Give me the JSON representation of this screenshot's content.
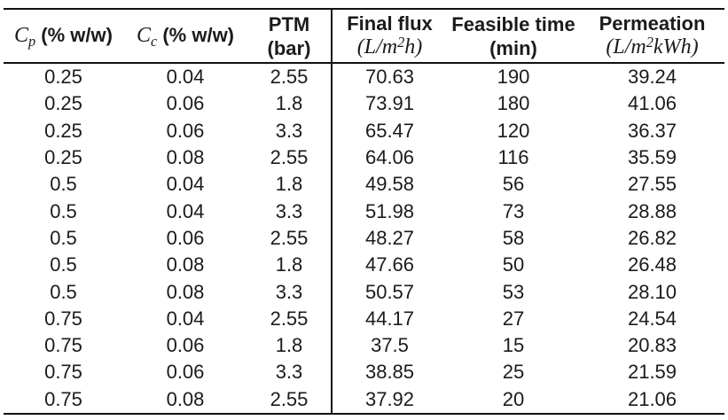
{
  "table": {
    "header": {
      "cp": {
        "base": "C",
        "sub": "p",
        "rest": " (% w/w)"
      },
      "cc": {
        "base": "C",
        "sub": "c",
        "rest": " (% w/w)"
      },
      "ptm": {
        "line1": "PTM",
        "line2": "(bar)"
      },
      "final_flux": {
        "line1": "Final flux",
        "unit_pre": "(L/m",
        "unit_sup": "2",
        "unit_post": "h)"
      },
      "feasible_time": {
        "line1": "Feasible time",
        "line2": "(min)"
      },
      "permeation": {
        "line1": "Permeation",
        "unit_pre": "(L/m",
        "unit_sup": "2",
        "unit_post": "kWh)"
      }
    },
    "rows": [
      [
        "0.25",
        "0.04",
        "2.55",
        "70.63",
        "190",
        "39.24"
      ],
      [
        "0.25",
        "0.06",
        "1.8",
        "73.91",
        "180",
        "41.06"
      ],
      [
        "0.25",
        "0.06",
        "3.3",
        "65.47",
        "120",
        "36.37"
      ],
      [
        "0.25",
        "0.08",
        "2.55",
        "64.06",
        "116",
        "35.59"
      ],
      [
        "0.5",
        "0.04",
        "1.8",
        "49.58",
        "56",
        "27.55"
      ],
      [
        "0.5",
        "0.04",
        "3.3",
        "51.98",
        "73",
        "28.88"
      ],
      [
        "0.5",
        "0.06",
        "2.55",
        "48.27",
        "58",
        "26.82"
      ],
      [
        "0.5",
        "0.08",
        "1.8",
        "47.66",
        "50",
        "26.48"
      ],
      [
        "0.5",
        "0.08",
        "3.3",
        "50.57",
        "53",
        "28.10"
      ],
      [
        "0.75",
        "0.04",
        "2.55",
        "44.17",
        "27",
        "24.54"
      ],
      [
        "0.75",
        "0.06",
        "1.8",
        "37.5",
        "15",
        "20.83"
      ],
      [
        "0.75",
        "0.06",
        "3.3",
        "38.85",
        "25",
        "21.59"
      ],
      [
        "0.75",
        "0.08",
        "2.55",
        "37.92",
        "20",
        "21.06"
      ]
    ],
    "colors": {
      "text": "#1b1b1b",
      "rule": "#111111",
      "background": "#ffffff"
    }
  }
}
